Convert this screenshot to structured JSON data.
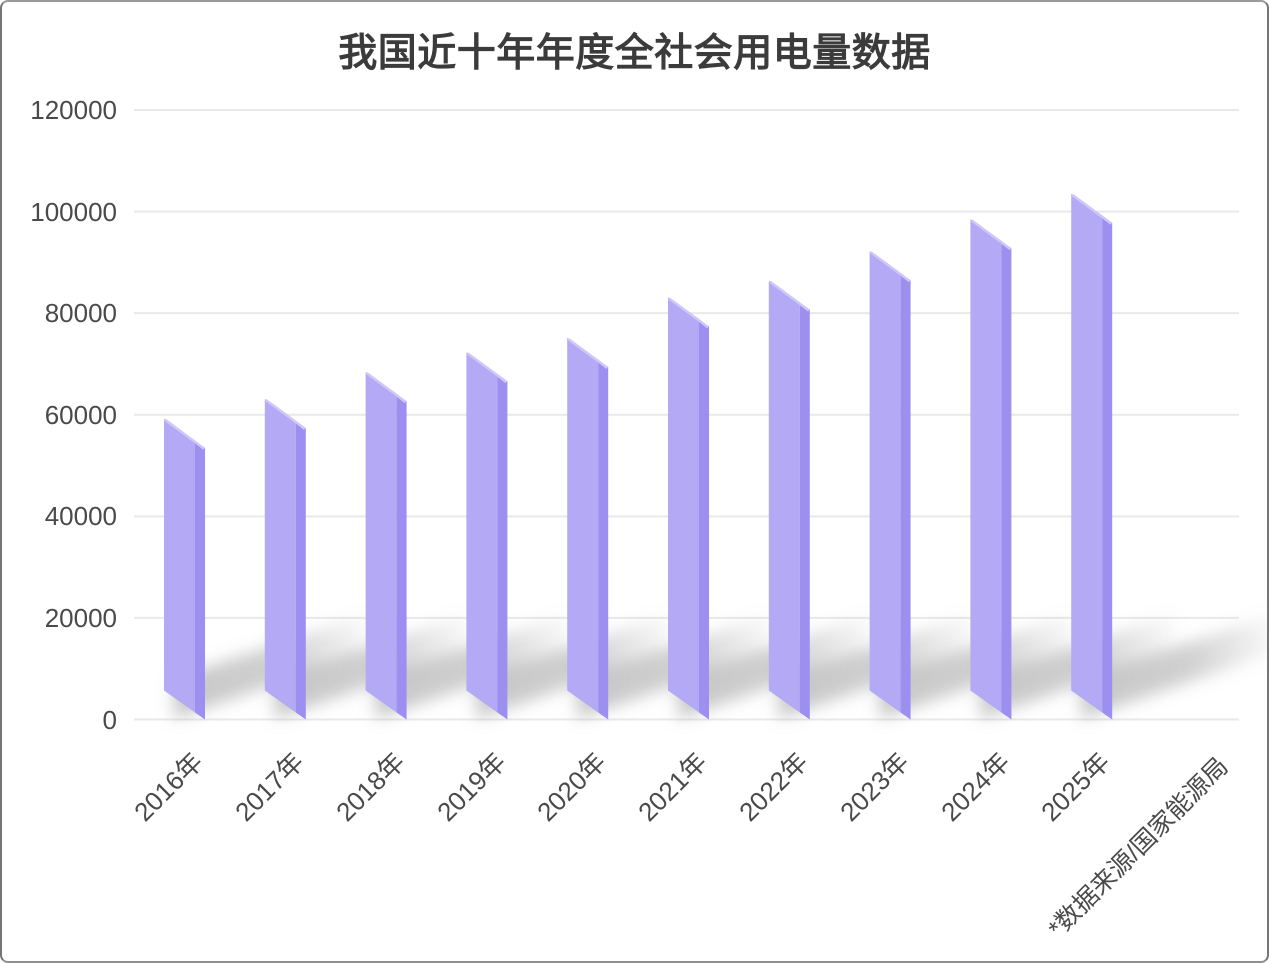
{
  "chart_data": {
    "type": "bar",
    "title": "我国近十年年度全社会用电量数据",
    "categories": [
      "2016年",
      "2017年",
      "2018年",
      "2019年",
      "2020年",
      "2021年",
      "2022年",
      "2023年",
      "2024年",
      "2025年"
    ],
    "values": [
      59200,
      63100,
      68400,
      72300,
      75100,
      83100,
      86400,
      92200,
      98500,
      103500
    ],
    "source_note": "*数据来源/国家能源局",
    "xlabel": "",
    "ylabel": "",
    "yticks": [
      0,
      20000,
      40000,
      60000,
      80000,
      100000,
      120000
    ],
    "ylim": [
      0,
      120000
    ],
    "grid": true,
    "legend": false,
    "style": {
      "bar_front": "#b4a9f5",
      "bar_side": "#9d8ff0",
      "bar_highlight": "#cfc7fa",
      "shadow": "#8f8f8f",
      "gridline": "#e9e9e9",
      "tick_text": "#4a4a4a",
      "title_color": "#3b3b3b",
      "background": "#ffffff"
    }
  }
}
